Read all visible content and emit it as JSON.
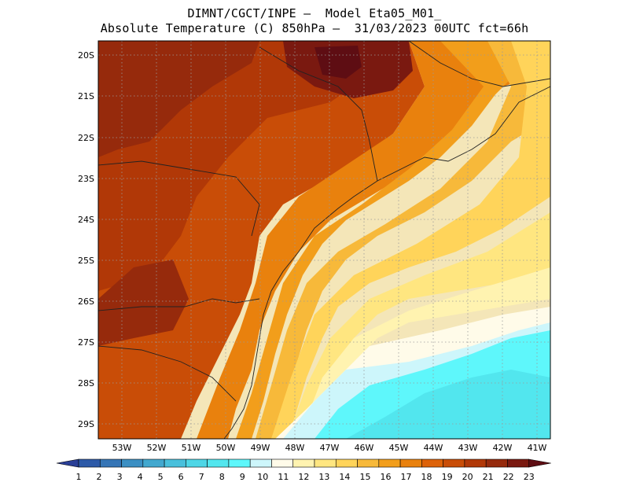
{
  "header": {
    "line1": "DIMNT/CGCT/INPE –  Model Eta05_M01_",
    "line2": "Absolute Temperature (C) 850hPa –  31/03/2023 00UTC fct=66h"
  },
  "map": {
    "lat_labels": [
      "20S",
      "21S",
      "22S",
      "23S",
      "24S",
      "25S",
      "26S",
      "27S",
      "28S",
      "29S"
    ],
    "lon_labels": [
      "53W",
      "52W",
      "51W",
      "50W",
      "49W",
      "48W",
      "47W",
      "46W",
      "45W",
      "44W",
      "43W",
      "42W",
      "41W"
    ],
    "field": "Absolute Temperature (C) 850hPa"
  },
  "colorbar": {
    "labels": [
      "1",
      "2",
      "3",
      "4",
      "5",
      "6",
      "7",
      "8",
      "9",
      "10",
      "11",
      "12",
      "13",
      "14",
      "15",
      "16",
      "17",
      "18",
      "19",
      "20",
      "21",
      "22",
      "23"
    ],
    "colors": [
      "#2a3f97",
      "#2d5aa8",
      "#3575b6",
      "#3b8fc3",
      "#42a8cf",
      "#49c0dc",
      "#4ed6e6",
      "#52e6ee",
      "#5ef7fb",
      "#cdf6fb",
      "#fffbe9",
      "#fff3b0",
      "#ffe680",
      "#ffd45a",
      "#f7b93a",
      "#f29e1b",
      "#e9810d",
      "#dd6209",
      "#c94d07",
      "#b13807",
      "#962a0c",
      "#7a1910",
      "#5e0d13"
    ]
  }
}
